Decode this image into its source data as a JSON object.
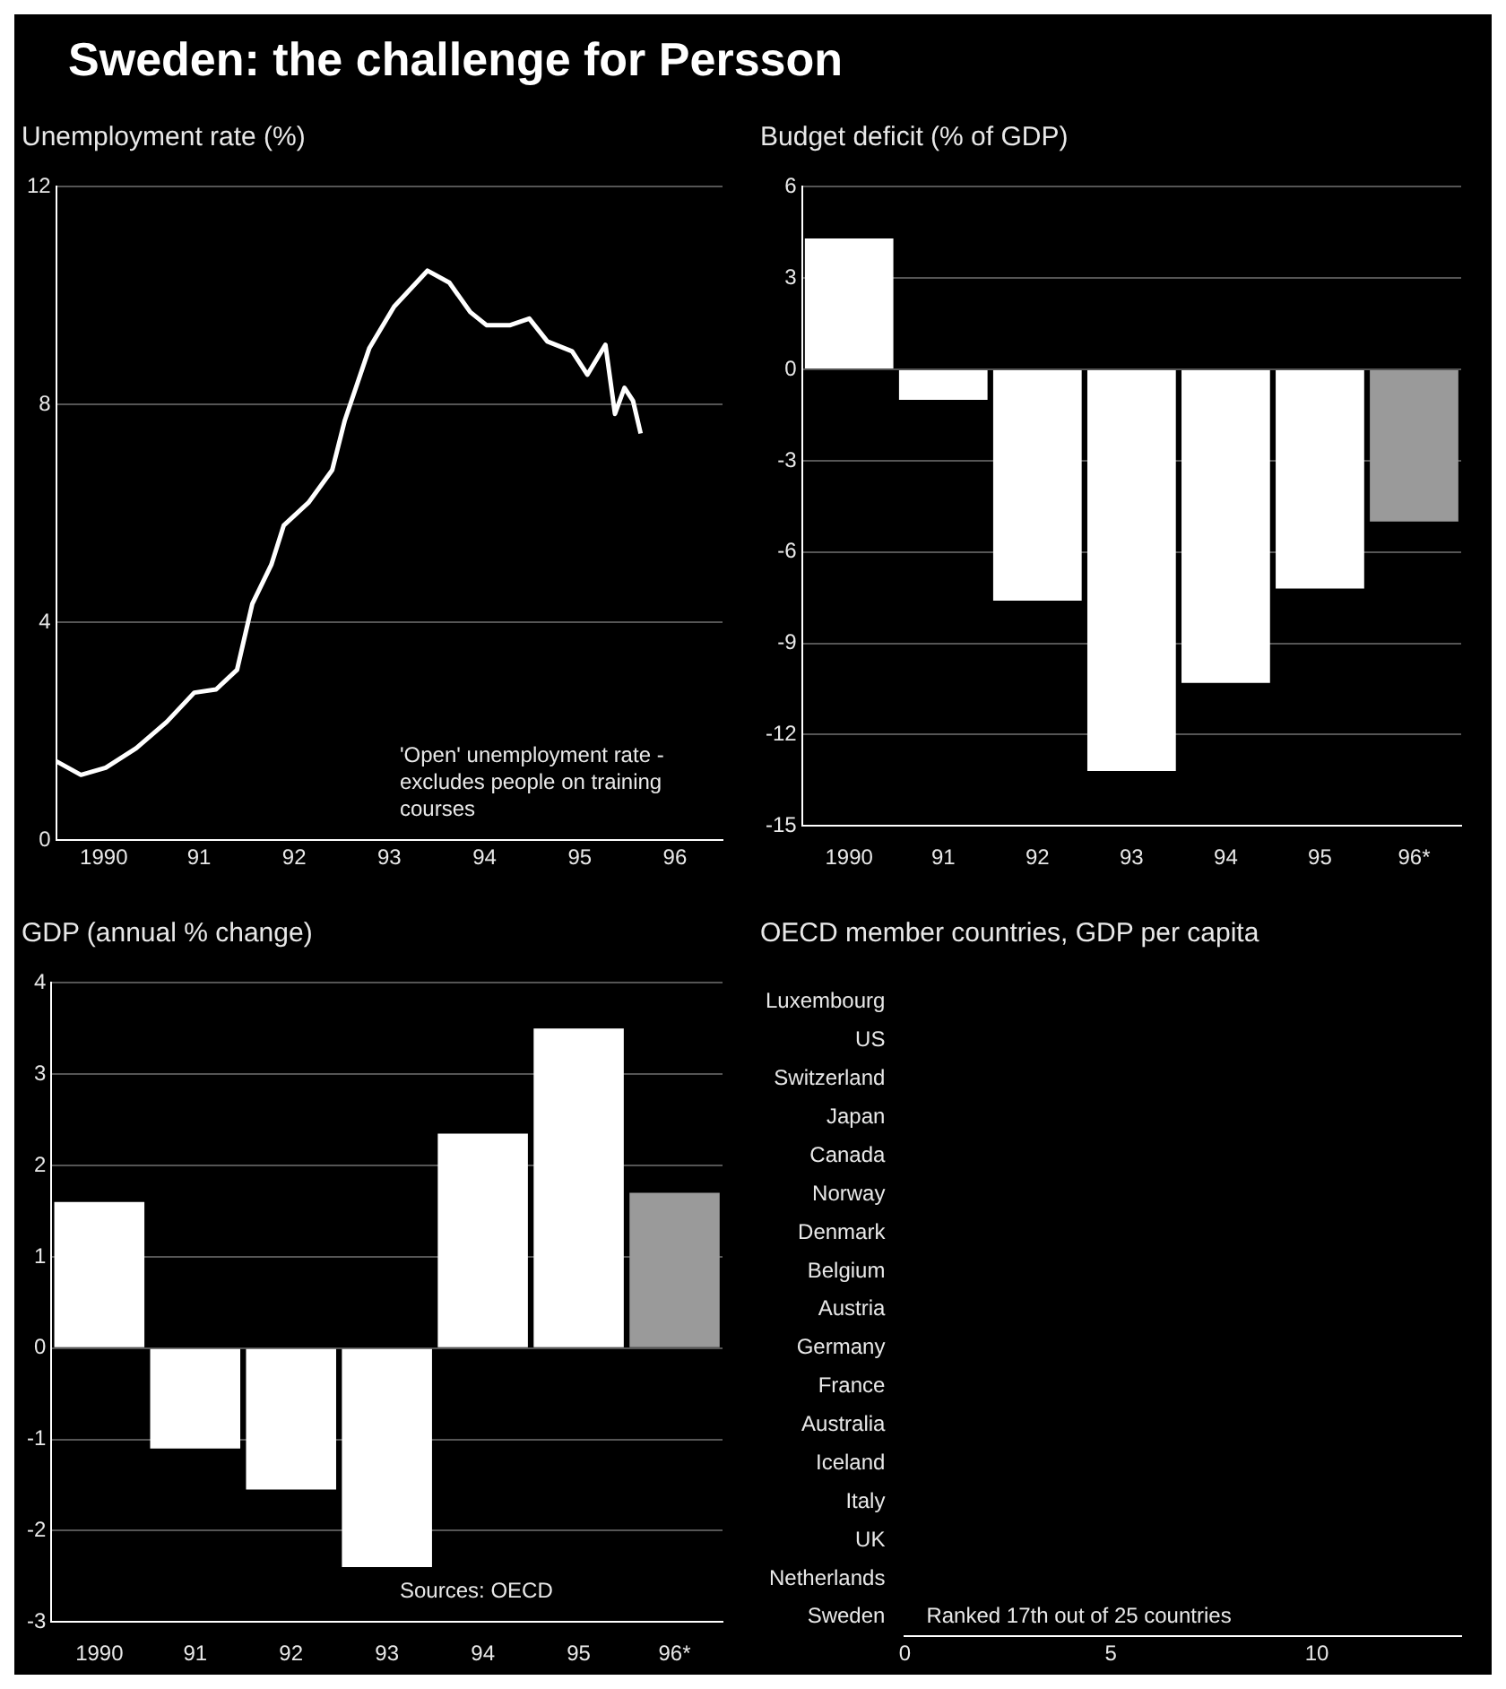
{
  "chart_data": [
    {
      "type": "line",
      "title": "Sweden: the challenge for Persson",
      "subtitle": "Unemployment rate (%)",
      "series": [
        {
          "color": "#ffffff",
          "x": [
            1989.5,
            1989.76,
            1990.02,
            1990.34,
            1990.66,
            1990.95,
            1991.18,
            1991.4,
            1991.56,
            1991.76,
            1991.89,
            1992.15,
            1992.4,
            1992.53,
            1992.79,
            1993.05,
            1993.4,
            1993.63,
            1993.85,
            1994.02,
            1994.27,
            1994.47,
            1994.66,
            1994.92,
            1995.08,
            1995.27,
            1995.37,
            1995.47,
            1995.56,
            1995.64
          ],
          "values": [
            1.45,
            1.2,
            1.33,
            1.69,
            2.17,
            2.71,
            2.77,
            3.13,
            4.34,
            5.06,
            5.78,
            6.2,
            6.8,
            7.7,
            9.04,
            9.8,
            10.46,
            10.24,
            9.7,
            9.46,
            9.46,
            9.58,
            9.16,
            8.98,
            8.55,
            9.1,
            7.83,
            8.31,
            8.07,
            7.47
          ]
        }
      ],
      "xlim": [
        1989.5,
        1996.5
      ],
      "xticks": [
        1990,
        {
          "value": 1991,
          "label": "91"
        },
        {
          "value": 1992,
          "label": "92"
        },
        {
          "value": 1993,
          "label": "93"
        },
        {
          "value": 1994,
          "label": "94"
        },
        {
          "value": 1995,
          "label": "95"
        },
        {
          "value": 1996,
          "label": "96"
        }
      ],
      "ylim": [
        0,
        12
      ],
      "yticks": [
        0,
        4,
        8,
        12
      ],
      "grid": "y",
      "legend": false,
      "marker": "none",
      "line_style": "solid",
      "annotations": [
        "'Open' unemployment rate - excludes people on training courses"
      ]
    },
    {
      "type": "bar",
      "subtitle": "Budget deficit (% of GDP)",
      "categories": [
        "1990",
        "91",
        "92",
        "93",
        "94",
        "95",
        "96*"
      ],
      "values": [
        4.3,
        -1.0,
        -7.6,
        -13.2,
        -10.3,
        -7.2,
        -5.0
      ],
      "colors": [
        "#ffffff",
        "#ffffff",
        "#ffffff",
        "#ffffff",
        "#ffffff",
        "#ffffff",
        "#9a9a9a"
      ],
      "ylim": [
        -15,
        6
      ],
      "yticks": [
        -15,
        -12,
        -9,
        -6,
        -3,
        0,
        3,
        6
      ],
      "grid": "y",
      "legend": false
    },
    {
      "type": "bar",
      "subtitle": "GDP (annual % change)",
      "categories": [
        "1990",
        "91",
        "92",
        "93",
        "94",
        "95",
        "96*"
      ],
      "values": [
        1.6,
        -1.1,
        -1.55,
        -2.4,
        2.35,
        3.5,
        1.7
      ],
      "colors": [
        "#ffffff",
        "#ffffff",
        "#ffffff",
        "#ffffff",
        "#ffffff",
        "#ffffff",
        "#9a9a9a"
      ],
      "ylim": [
        -3,
        4
      ],
      "yticks": [
        -3,
        -2,
        -1,
        0,
        1,
        2,
        3,
        4
      ],
      "grid": "y",
      "legend": false,
      "annotations": [
        "Sources: OECD"
      ]
    },
    {
      "type": "bar",
      "orientation": "horizontal",
      "subtitle": "OECD member countries, GDP per capita",
      "categories": [
        "Luxembourg",
        "US",
        "Switzerland",
        "Japan",
        "Canada",
        "Norway",
        "Denmark",
        "Belgium",
        "Austria",
        "Germany",
        "France",
        "Australia",
        "Iceland",
        "Italy",
        "UK",
        "Netherlands",
        "Sweden"
      ],
      "values": [
        null,
        null,
        null,
        null,
        null,
        null,
        null,
        null,
        null,
        null,
        null,
        null,
        null,
        null,
        null,
        null,
        null
      ],
      "xlim": [
        0,
        13.5
      ],
      "xticks": [
        0,
        5,
        10
      ],
      "grid": false,
      "legend": false,
      "annotations": [
        "Ranked 17th out of 25 countries"
      ]
    }
  ]
}
